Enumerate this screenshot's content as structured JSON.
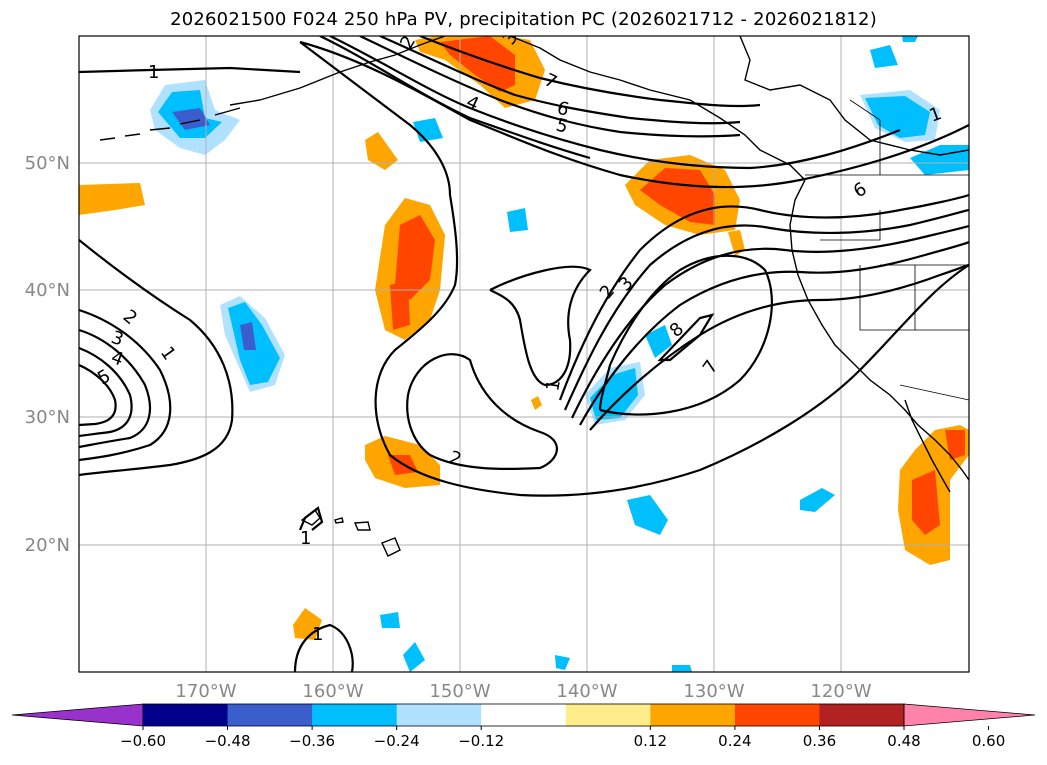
{
  "chart_data": {
    "type": "map",
    "title": "2026021500 F024 250 hPa PV, precipitation PC (2026021712 - 2026021812)",
    "lat_ticks": [
      "50°N",
      "40°N",
      "30°N",
      "20°N"
    ],
    "lon_ticks": [
      "170°W",
      "160°W",
      "150°W",
      "140°W",
      "130°W",
      "120°W"
    ],
    "grid": true,
    "colorbar": {
      "ticks": [
        "−0.60",
        "−0.48",
        "−0.36",
        "−0.24",
        "−0.12",
        "0.12",
        "0.24",
        "0.36",
        "0.48",
        "0.60"
      ],
      "colors": [
        "#9932cc",
        "#00008b",
        "#3a5fcd",
        "#00bfff",
        "#b0e2ff",
        "#ffffff",
        "#ffec8b",
        "#ffa500",
        "#ff4500",
        "#b22222",
        "#ff82ab"
      ],
      "extend": "both"
    },
    "pv_contour_labels": [
      "1",
      "2",
      "3",
      "4",
      "5",
      "6",
      "7",
      "8",
      "1",
      "2",
      "3",
      "4",
      "5",
      "6",
      "7",
      "1",
      "2",
      "1",
      "2",
      "3",
      "1",
      "1"
    ]
  }
}
